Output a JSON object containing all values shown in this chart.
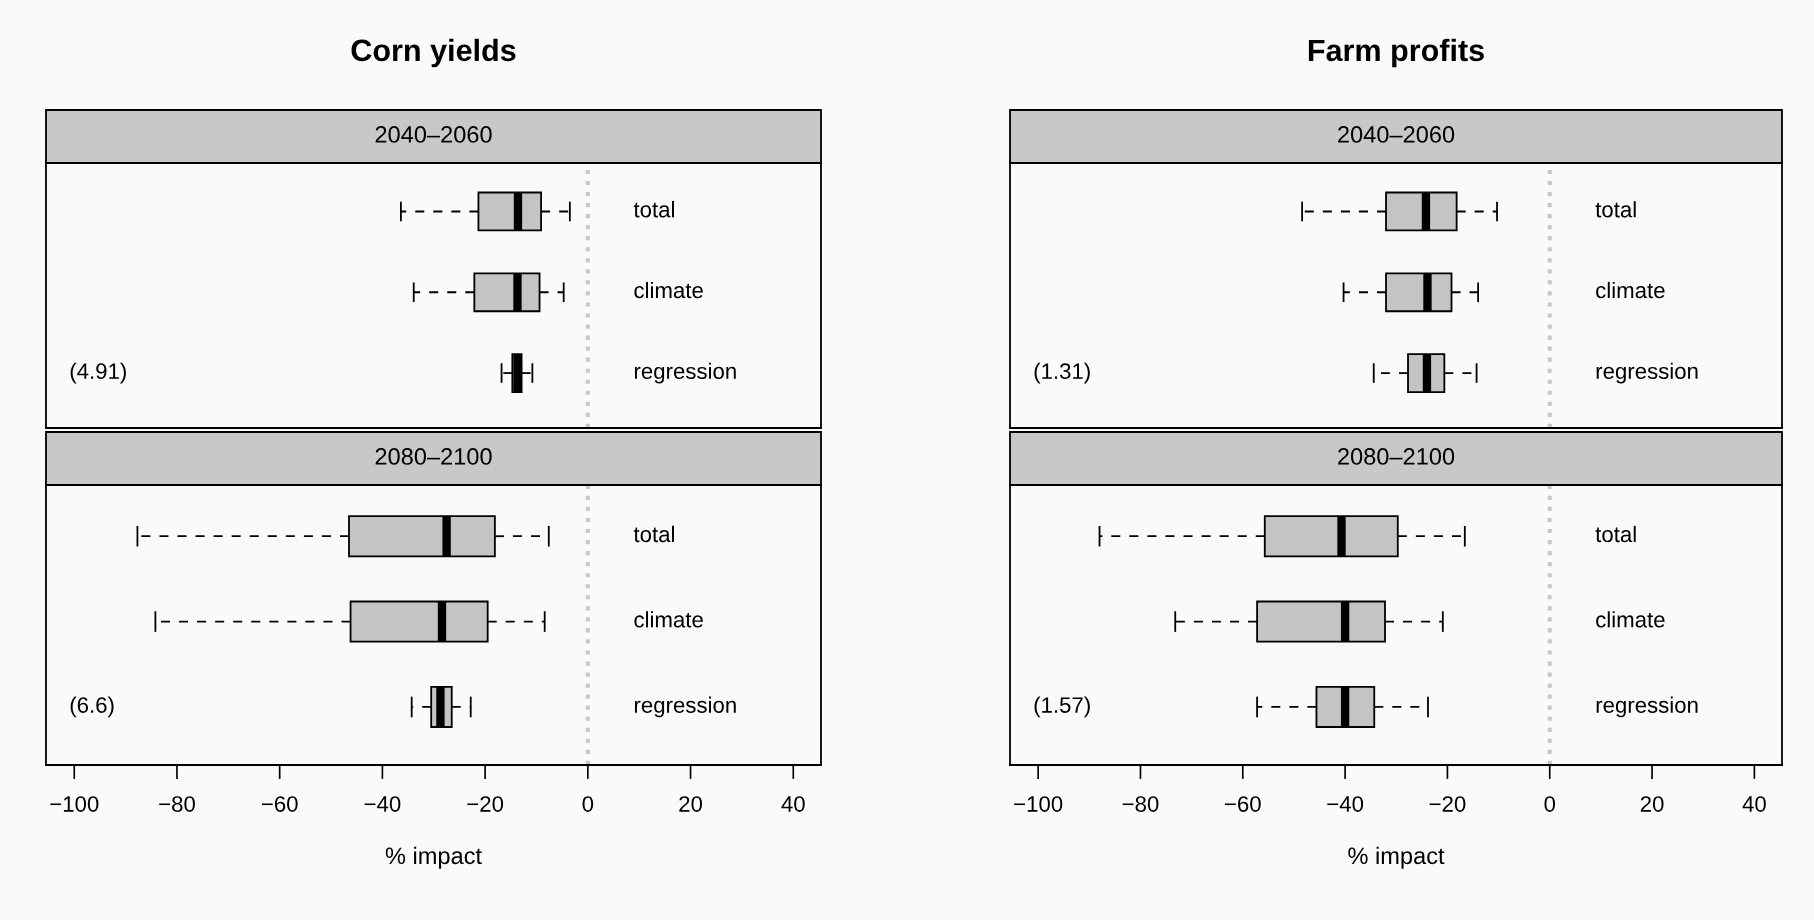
{
  "chart_data": [
    {
      "type": "box",
      "title": "Corn yields",
      "subtitle": "2040–2060",
      "orientation": "horizontal",
      "categories": [
        "total",
        "climate",
        "regression"
      ],
      "boxes": [
        {
          "low": -36.4,
          "q1": -21.3,
          "median": -13.6,
          "q3": -9.1,
          "high": -3.5
        },
        {
          "low": -33.9,
          "q1": -22.1,
          "median": -13.7,
          "q3": -9.4,
          "high": -4.7
        },
        {
          "low": -16.8,
          "q1": -14.7,
          "median": -13.7,
          "q3": -12.9,
          "high": -10.8
        }
      ],
      "color": "#c4c4c4",
      "xlim": [
        -105.5,
        45.4
      ],
      "tick_labels": "y",
      "ref_lines": [
        {
          "axis": "x",
          "value": 0,
          "color": "#c8c8c8",
          "line_style": "dotted"
        }
      ],
      "annotations": [
        "(4.91)"
      ]
    },
    {
      "type": "box",
      "subtitle": "2080–2100",
      "xlabel": "% impact",
      "orientation": "horizontal",
      "categories": [
        "total",
        "climate",
        "regression"
      ],
      "boxes": [
        {
          "low": -87.7,
          "q1": -46.5,
          "median": -27.5,
          "q3": -18.1,
          "high": -7.6
        },
        {
          "low": -84.2,
          "q1": -46.2,
          "median": -28.4,
          "q3": -19.5,
          "high": -8.4
        },
        {
          "low": -34.3,
          "q1": -30.5,
          "median": -28.7,
          "q3": -26.5,
          "high": -22.8
        }
      ],
      "color": "#c4c4c4",
      "xlim": [
        -105.5,
        45.4
      ],
      "xticks": [
        {
          "value": -100,
          "label": "−100"
        },
        {
          "value": -80,
          "label": "−80"
        },
        {
          "value": -60,
          "label": "−60"
        },
        {
          "value": -40,
          "label": "−40"
        },
        {
          "value": -20,
          "label": "−20"
        },
        0,
        20,
        40
      ],
      "ref_lines": [
        {
          "axis": "x",
          "value": 0,
          "color": "#c8c8c8",
          "line_style": "dotted"
        }
      ],
      "annotations": [
        "(6.6)"
      ]
    },
    {
      "type": "box",
      "title": "Farm profits",
      "subtitle": "2040–2060",
      "orientation": "horizontal",
      "categories": [
        "total",
        "climate",
        "regression"
      ],
      "boxes": [
        {
          "low": -48.4,
          "q1": -32.0,
          "median": -24.2,
          "q3": -18.2,
          "high": -10.3
        },
        {
          "low": -40.3,
          "q1": -32.0,
          "median": -23.9,
          "q3": -19.2,
          "high": -14.0
        },
        {
          "low": -34.4,
          "q1": -27.7,
          "median": -24.0,
          "q3": -20.6,
          "high": -14.3
        }
      ],
      "color": "#c4c4c4",
      "xlim": [
        -105.5,
        45.4
      ],
      "tick_labels": "y",
      "ref_lines": [
        {
          "axis": "x",
          "value": 0,
          "color": "#c8c8c8",
          "line_style": "dotted"
        }
      ],
      "annotations": [
        "(1.31)"
      ]
    },
    {
      "type": "box",
      "subtitle": "2080–2100",
      "xlabel": "% impact",
      "orientation": "horizontal",
      "categories": [
        "total",
        "climate",
        "regression"
      ],
      "boxes": [
        {
          "low": -88.0,
          "q1": -55.7,
          "median": -40.7,
          "q3": -29.7,
          "high": -16.6
        },
        {
          "low": -73.2,
          "q1": -57.2,
          "median": -40.0,
          "q3": -32.2,
          "high": -20.9
        },
        {
          "low": -57.2,
          "q1": -45.6,
          "median": -40.0,
          "q3": -34.3,
          "high": -23.8
        }
      ],
      "color": "#c4c4c4",
      "xlim": [
        -105.5,
        45.4
      ],
      "xticks": [
        {
          "value": -100,
          "label": "−100"
        },
        {
          "value": -80,
          "label": "−80"
        },
        {
          "value": -60,
          "label": "−60"
        },
        {
          "value": -40,
          "label": "−40"
        },
        {
          "value": -20,
          "label": "−20"
        },
        0,
        20,
        40
      ],
      "ref_lines": [
        {
          "axis": "x",
          "value": 0,
          "color": "#c8c8c8",
          "line_style": "dotted"
        }
      ],
      "annotations": [
        "(1.57)"
      ]
    }
  ]
}
